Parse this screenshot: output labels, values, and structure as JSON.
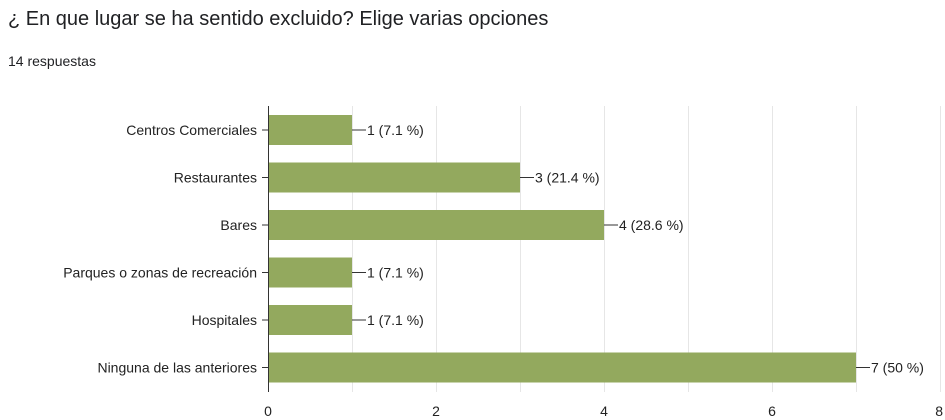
{
  "question": {
    "title": "¿ En que lugar se ha sentido excluido? Elige varias opciones",
    "response_count": "14 respuestas"
  },
  "colors": {
    "bar": "#93A95E",
    "grid": "#E6E6E6",
    "axis": "#333333",
    "text": "#222222"
  },
  "chart_data": {
    "type": "bar",
    "orientation": "horizontal",
    "categories": [
      "Centros Comerciales",
      "Restaurantes",
      "Bares",
      "Parques o zonas de recreación",
      "Hospitales",
      "Ninguna de las anteriores"
    ],
    "values": [
      1,
      3,
      4,
      1,
      1,
      7
    ],
    "data_labels": [
      "1 (7.1 %)",
      "3 (21.4 %)",
      "4 (28.6 %)",
      "1 (7.1 %)",
      "1 (7.1 %)",
      "7 (50 %)"
    ],
    "xlim": [
      0,
      8
    ],
    "xticks": [
      0,
      2,
      4,
      6,
      8
    ],
    "grid": true,
    "legend": "none",
    "title": "",
    "xlabel": "",
    "ylabel": ""
  }
}
